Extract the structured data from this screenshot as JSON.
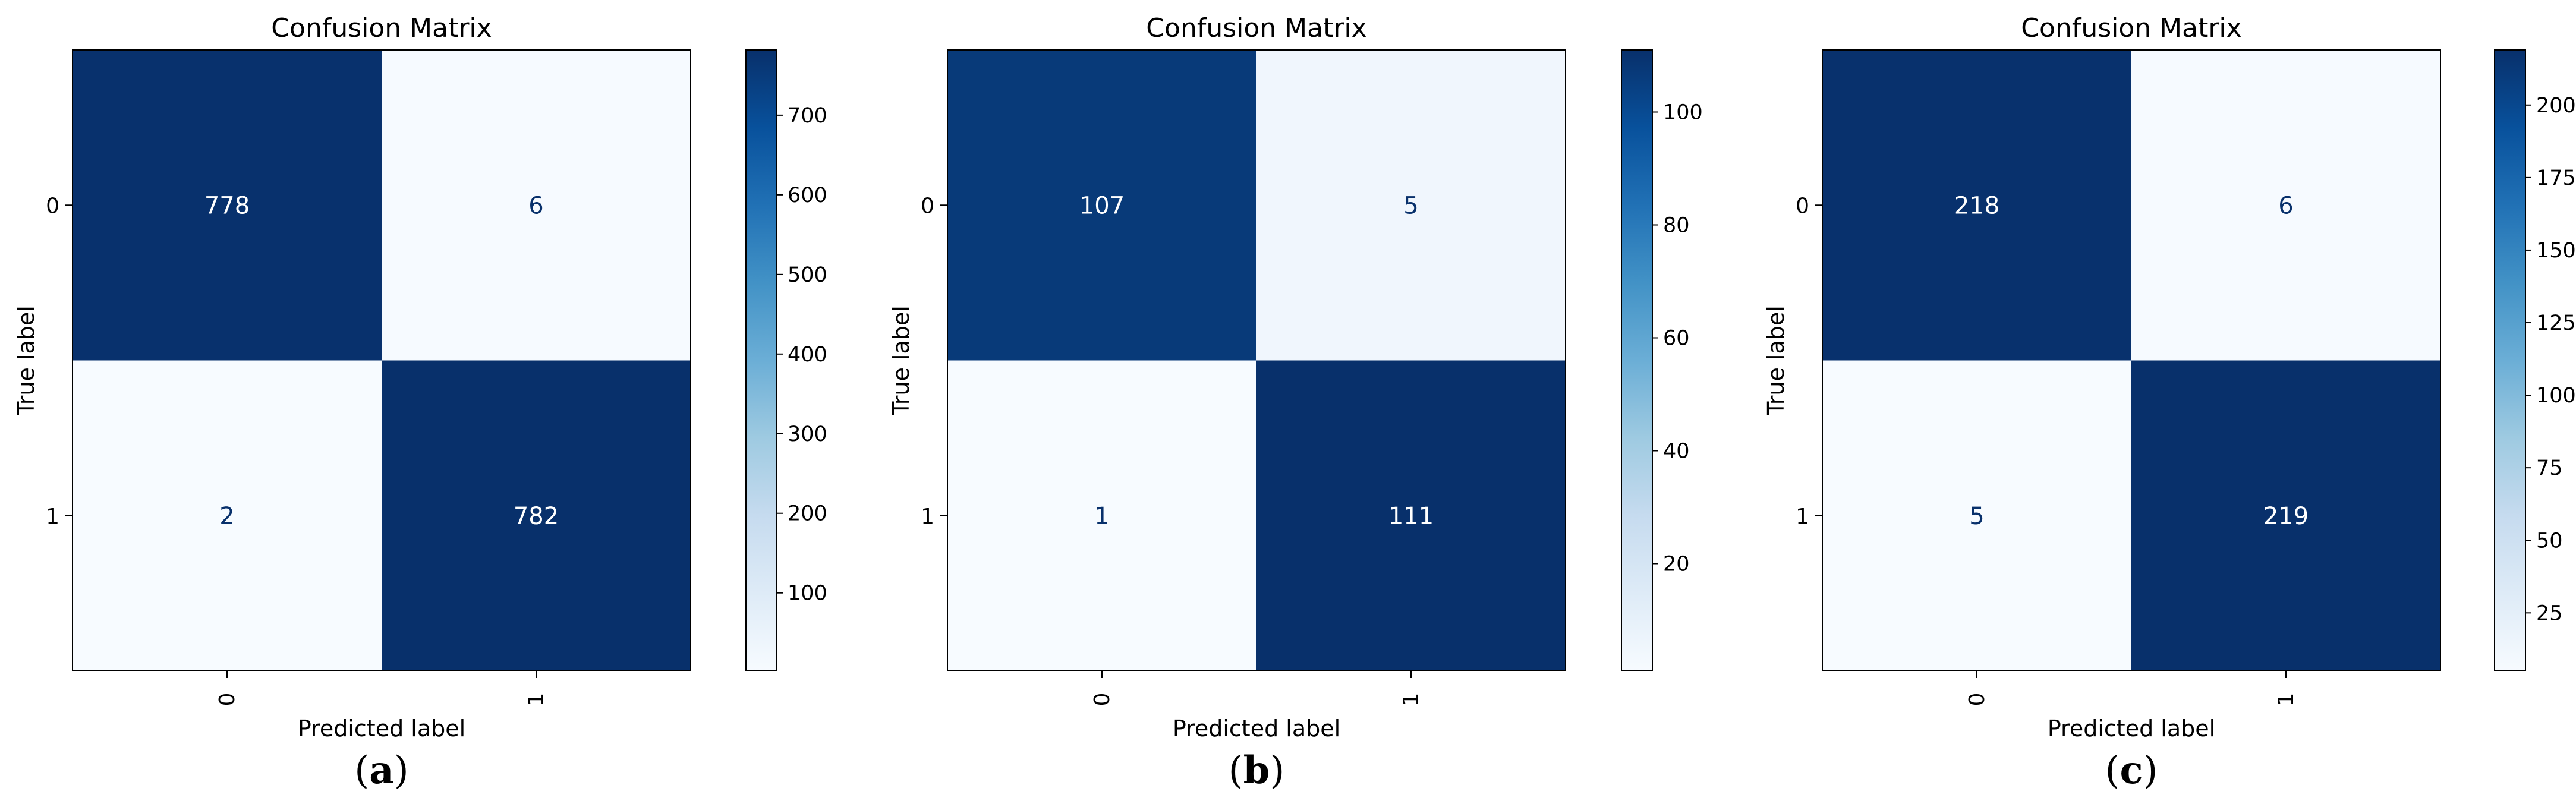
{
  "chart_data": [
    {
      "type": "heatmap",
      "title": "Confusion Matrix",
      "xlabel": "Predicted label",
      "ylabel": "True label",
      "x_ticks": [
        "0",
        "1"
      ],
      "y_ticks": [
        "0",
        "1"
      ],
      "matrix": [
        [
          778,
          6
        ],
        [
          2,
          782
        ]
      ],
      "colorbar": {
        "colormap": "Blues",
        "range": [
          2,
          782
        ],
        "ticks": [
          100,
          200,
          300,
          400,
          500,
          600,
          700
        ]
      },
      "caption": {
        "open": "(",
        "letter": "a",
        "close": ")"
      }
    },
    {
      "type": "heatmap",
      "title": "Confusion Matrix",
      "xlabel": "Predicted label",
      "ylabel": "True label",
      "x_ticks": [
        "0",
        "1"
      ],
      "y_ticks": [
        "0",
        "1"
      ],
      "matrix": [
        [
          107,
          5
        ],
        [
          1,
          111
        ]
      ],
      "colorbar": {
        "colormap": "Blues",
        "range": [
          1,
          111
        ],
        "ticks": [
          20,
          40,
          60,
          80,
          100
        ]
      },
      "caption": {
        "open": "(",
        "letter": "b",
        "close": ")"
      }
    },
    {
      "type": "heatmap",
      "title": "Confusion Matrix",
      "xlabel": "Predicted label",
      "ylabel": "True label",
      "x_ticks": [
        "0",
        "1"
      ],
      "y_ticks": [
        "0",
        "1"
      ],
      "matrix": [
        [
          218,
          6
        ],
        [
          5,
          219
        ]
      ],
      "colorbar": {
        "colormap": "Blues",
        "range": [
          5,
          219
        ],
        "ticks": [
          25,
          50,
          75,
          100,
          125,
          150,
          175,
          200
        ]
      },
      "caption": {
        "open": "(",
        "letter": "c",
        "close": ")"
      }
    }
  ]
}
